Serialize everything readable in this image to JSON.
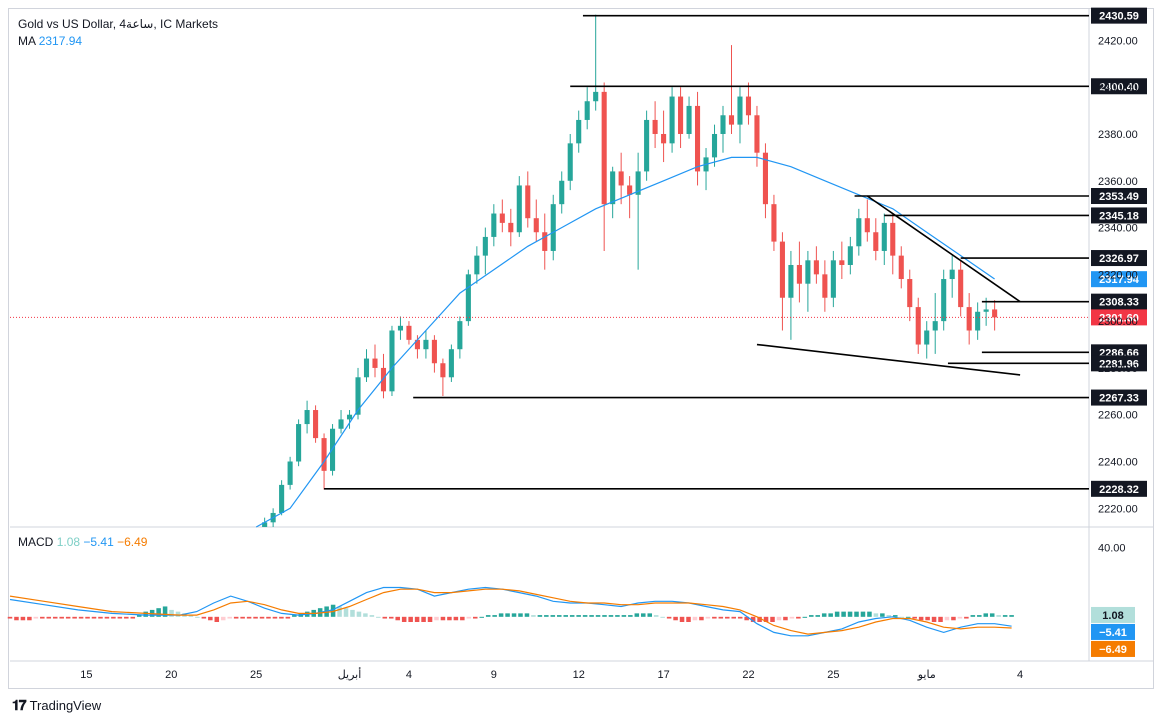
{
  "header": {
    "symbol": "Gold vs US Dollar, 4ساعة, IC Markets",
    "ma_label": "MA",
    "ma_value": "2317.94"
  },
  "macd_legend": {
    "label": "MACD",
    "hist": "1.08",
    "macd": "−5.41",
    "signal": "−6.49"
  },
  "footer": {
    "brand": "TradingView"
  },
  "colors": {
    "up": "#26a69a",
    "down": "#ef5350",
    "ma": "#2196f3",
    "macd_line": "#2196f3",
    "signal_line": "#f57c00",
    "hist_pos_strong": "#26a69a",
    "hist_pos_weak": "#b2dfdb",
    "hist_neg_strong": "#ef5350",
    "hist_neg_weak": "#ffcdd2",
    "last_price": "#f23645",
    "ma_tag": "#2196f3",
    "macd_hist_tag": "#b2dfdb"
  },
  "chart_data": {
    "type": "candlestick",
    "title": "Gold vs US Dollar, 4ساعة, IC Markets",
    "ylim": [
      2212,
      2433
    ],
    "y_ticks": [
      "2420.00",
      "2400.00",
      "2380.00",
      "2360.00",
      "2340.00",
      "2320.00",
      "2300.00",
      "2280.00",
      "2260.00",
      "2240.00",
      "2220.00"
    ],
    "x_ticks": [
      {
        "label": "15",
        "index": -21
      },
      {
        "label": "20",
        "index": -11
      },
      {
        "label": "25",
        "index": -1
      },
      {
        "label": "أبريل",
        "index": 10
      },
      {
        "label": "4",
        "index": 17
      },
      {
        "label": "9",
        "index": 27
      },
      {
        "label": "12",
        "index": 37
      },
      {
        "label": "17",
        "index": 47
      },
      {
        "label": "22",
        "index": 57
      },
      {
        "label": "25",
        "index": 67
      },
      {
        "label": "مايو",
        "index": 78
      },
      {
        "label": "4",
        "index": 89
      }
    ],
    "x_range": [
      -30,
      97
    ],
    "candles": [
      [
        2211,
        2216,
        2208,
        2214
      ],
      [
        2214,
        2220,
        2212,
        2218
      ],
      [
        2218,
        2232,
        2217,
        2230
      ],
      [
        2230,
        2242,
        2228,
        2240
      ],
      [
        2240,
        2258,
        2238,
        2256
      ],
      [
        2256,
        2266,
        2252,
        2262
      ],
      [
        2262,
        2264,
        2248,
        2250
      ],
      [
        2250,
        2252,
        2228,
        2236
      ],
      [
        2236,
        2256,
        2234,
        2254
      ],
      [
        2254,
        2262,
        2252,
        2258
      ],
      [
        2258,
        2262,
        2254,
        2260
      ],
      [
        2260,
        2280,
        2258,
        2276
      ],
      [
        2276,
        2288,
        2274,
        2284
      ],
      [
        2284,
        2290,
        2276,
        2280
      ],
      [
        2280,
        2286,
        2267,
        2270
      ],
      [
        2270,
        2298,
        2268,
        2296
      ],
      [
        2296,
        2302,
        2292,
        2298
      ],
      [
        2298,
        2300,
        2290,
        2292
      ],
      [
        2292,
        2294,
        2284,
        2288
      ],
      [
        2288,
        2296,
        2284,
        2292
      ],
      [
        2292,
        2294,
        2278,
        2282
      ],
      [
        2282,
        2284,
        2268,
        2276
      ],
      [
        2276,
        2290,
        2274,
        2288
      ],
      [
        2288,
        2302,
        2284,
        2300
      ],
      [
        2300,
        2322,
        2298,
        2320
      ],
      [
        2320,
        2332,
        2316,
        2328
      ],
      [
        2328,
        2340,
        2320,
        2336
      ],
      [
        2336,
        2350,
        2332,
        2346
      ],
      [
        2346,
        2352,
        2338,
        2342
      ],
      [
        2342,
        2348,
        2332,
        2338
      ],
      [
        2338,
        2362,
        2336,
        2358
      ],
      [
        2358,
        2364,
        2340,
        2344
      ],
      [
        2344,
        2352,
        2334,
        2338
      ],
      [
        2338,
        2346,
        2322,
        2330
      ],
      [
        2330,
        2354,
        2326,
        2350
      ],
      [
        2350,
        2364,
        2346,
        2360
      ],
      [
        2360,
        2380,
        2356,
        2376
      ],
      [
        2376,
        2390,
        2372,
        2386
      ],
      [
        2386,
        2400,
        2382,
        2394
      ],
      [
        2394,
        2431,
        2390,
        2398
      ],
      [
        2398,
        2402,
        2330,
        2350
      ],
      [
        2350,
        2366,
        2344,
        2364
      ],
      [
        2364,
        2372,
        2350,
        2358
      ],
      [
        2358,
        2362,
        2344,
        2354
      ],
      [
        2354,
        2372,
        2322,
        2364
      ],
      [
        2364,
        2390,
        2360,
        2386
      ],
      [
        2386,
        2394,
        2374,
        2380
      ],
      [
        2380,
        2390,
        2368,
        2376
      ],
      [
        2376,
        2400,
        2372,
        2396
      ],
      [
        2396,
        2400,
        2374,
        2380
      ],
      [
        2380,
        2396,
        2378,
        2392
      ],
      [
        2392,
        2398,
        2358,
        2364
      ],
      [
        2364,
        2374,
        2356,
        2370
      ],
      [
        2370,
        2384,
        2366,
        2380
      ],
      [
        2380,
        2392,
        2372,
        2388
      ],
      [
        2388,
        2418,
        2380,
        2384
      ],
      [
        2384,
        2400,
        2376,
        2396
      ],
      [
        2396,
        2402,
        2384,
        2388
      ],
      [
        2388,
        2392,
        2366,
        2372
      ],
      [
        2372,
        2376,
        2344,
        2350
      ],
      [
        2350,
        2354,
        2330,
        2334
      ],
      [
        2334,
        2338,
        2296,
        2310
      ],
      [
        2310,
        2330,
        2292,
        2324
      ],
      [
        2324,
        2334,
        2308,
        2316
      ],
      [
        2316,
        2330,
        2304,
        2326
      ],
      [
        2326,
        2332,
        2316,
        2320
      ],
      [
        2320,
        2326,
        2304,
        2310
      ],
      [
        2310,
        2330,
        2306,
        2326
      ],
      [
        2326,
        2334,
        2318,
        2324
      ],
      [
        2324,
        2336,
        2320,
        2332
      ],
      [
        2332,
        2348,
        2328,
        2344
      ],
      [
        2344,
        2352,
        2334,
        2338
      ],
      [
        2338,
        2344,
        2326,
        2330
      ],
      [
        2330,
        2346,
        2324,
        2342
      ],
      [
        2342,
        2346,
        2320,
        2328
      ],
      [
        2328,
        2332,
        2314,
        2318
      ],
      [
        2318,
        2322,
        2300,
        2306
      ],
      [
        2306,
        2310,
        2286,
        2290
      ],
      [
        2290,
        2300,
        2284,
        2296
      ],
      [
        2296,
        2312,
        2286,
        2300
      ],
      [
        2300,
        2322,
        2296,
        2318
      ],
      [
        2318,
        2328,
        2310,
        2322
      ],
      [
        2322,
        2326,
        2302,
        2306
      ],
      [
        2306,
        2312,
        2290,
        2296
      ],
      [
        2296,
        2308,
        2292,
        2304
      ],
      [
        2304,
        2310,
        2298,
        2305
      ],
      [
        2305,
        2309,
        2296,
        2301.6
      ]
    ],
    "ma_period_label": "MA",
    "ma": [
      [
        -1,
        2200
      ],
      [
        3,
        2220
      ],
      [
        7,
        2240
      ],
      [
        11,
        2262
      ],
      [
        15,
        2280
      ],
      [
        19,
        2296
      ],
      [
        23,
        2312
      ],
      [
        27,
        2322
      ],
      [
        31,
        2332
      ],
      [
        35,
        2340
      ],
      [
        39,
        2348
      ],
      [
        43,
        2354
      ],
      [
        47,
        2360
      ],
      [
        51,
        2366
      ],
      [
        55,
        2370
      ],
      [
        58,
        2370
      ],
      [
        62,
        2366
      ],
      [
        66,
        2360
      ],
      [
        70,
        2354
      ],
      [
        74,
        2348
      ],
      [
        78,
        2338
      ],
      [
        82,
        2328
      ],
      [
        86,
        2318
      ]
    ],
    "levels": [
      {
        "value": 2430.59,
        "label": "2430.59",
        "x_from": 37.5
      },
      {
        "value": 2400.4,
        "label": "2400.40",
        "x_from": 36
      },
      {
        "value": 2353.49,
        "label": "2353.49",
        "x_from": 69.5
      },
      {
        "value": 2345.18,
        "label": "2345.18",
        "x_from": 73
      },
      {
        "value": 2326.97,
        "label": "2326.97",
        "x_from": 82
      },
      {
        "value": 2308.33,
        "label": "2308.33",
        "x_from": 84.5
      },
      {
        "value": 2286.66,
        "label": "2286.66",
        "x_from": 84.5
      },
      {
        "value": 2281.96,
        "label": "2281.96",
        "x_from": 80.5
      },
      {
        "value": 2267.33,
        "label": "2267.33",
        "x_from": 17.5
      },
      {
        "value": 2228.32,
        "label": "2228.32",
        "x_from": 7
      }
    ],
    "trendlines": [
      {
        "from": [
          71,
          2353.49
        ],
        "to": [
          89,
          2308.33
        ]
      },
      {
        "from": [
          58,
          2290
        ],
        "to": [
          89,
          2277
        ]
      }
    ],
    "last_price": {
      "value": 2301.6,
      "label": "2301.60"
    },
    "ma_tag": {
      "value": 2317.94,
      "label": "2317.94"
    },
    "macd": {
      "ylim": [
        -25,
        52
      ],
      "y_ticks": [
        "40.00"
      ],
      "hist": [
        -1,
        -2,
        -2,
        -2,
        -1,
        -1,
        -1,
        -1,
        -1,
        -1,
        -1,
        -1,
        -1,
        -1,
        -1,
        -1,
        -1,
        -1,
        -1,
        -1,
        1,
        3,
        4,
        5,
        6,
        4,
        3,
        2,
        1,
        0,
        -1,
        -2,
        -3,
        -2,
        -1,
        -1,
        -1,
        -1,
        -1,
        -1,
        -1,
        -1,
        -1,
        -1,
        1,
        2,
        3,
        4,
        5,
        6,
        7,
        6,
        5,
        4,
        3,
        2,
        1,
        0,
        -1,
        -1,
        -2,
        -3,
        -3,
        -3,
        -3,
        -3,
        -2,
        -2,
        -2,
        -2,
        -2,
        -1,
        -1,
        0,
        1,
        1,
        2,
        2,
        2,
        2,
        2,
        1,
        1,
        1,
        1,
        1,
        1,
        1,
        1,
        1,
        1,
        1,
        1,
        1,
        1,
        1,
        1,
        2,
        2,
        2,
        1,
        0,
        -1,
        -2,
        -3,
        -3,
        -2,
        -2,
        -1,
        -1,
        -1,
        -1,
        -1,
        -1,
        -2,
        -3,
        -3,
        -3,
        -3,
        -2,
        -2,
        -1,
        -1,
        0,
        1,
        1,
        2,
        2,
        3,
        3,
        3,
        3,
        3,
        3,
        2,
        2,
        1,
        1,
        0,
        0,
        -1,
        -2,
        -2,
        -3,
        -3,
        -2,
        -2,
        -1,
        -1,
        1,
        1,
        2,
        2,
        1,
        1,
        1
      ],
      "macd_line": [
        [
          -30,
          10
        ],
        [
          -26,
          7
        ],
        [
          -22,
          4
        ],
        [
          -18,
          2
        ],
        [
          -14,
          1
        ],
        [
          -10,
          1
        ],
        [
          -8,
          3
        ],
        [
          -6,
          8
        ],
        [
          -4,
          12
        ],
        [
          -2,
          9
        ],
        [
          0,
          5
        ],
        [
          2,
          2
        ],
        [
          4,
          1
        ],
        [
          6,
          2
        ],
        [
          8,
          4
        ],
        [
          10,
          9
        ],
        [
          12,
          14
        ],
        [
          14,
          17
        ],
        [
          16,
          17
        ],
        [
          18,
          16
        ],
        [
          20,
          12
        ],
        [
          22,
          14
        ],
        [
          24,
          16
        ],
        [
          26,
          17
        ],
        [
          28,
          16
        ],
        [
          30,
          14
        ],
        [
          32,
          12
        ],
        [
          34,
          9
        ],
        [
          36,
          8
        ],
        [
          38,
          8
        ],
        [
          40,
          7
        ],
        [
          42,
          6
        ],
        [
          44,
          8
        ],
        [
          46,
          9
        ],
        [
          48,
          9
        ],
        [
          50,
          8
        ],
        [
          52,
          6
        ],
        [
          54,
          4
        ],
        [
          56,
          3
        ],
        [
          58,
          -4
        ],
        [
          60,
          -9
        ],
        [
          62,
          -11
        ],
        [
          64,
          -11
        ],
        [
          66,
          -9
        ],
        [
          68,
          -7
        ],
        [
          70,
          -3
        ],
        [
          72,
          -1
        ],
        [
          74,
          0
        ],
        [
          76,
          -2
        ],
        [
          78,
          -6
        ],
        [
          80,
          -9
        ],
        [
          82,
          -6
        ],
        [
          84,
          -4
        ],
        [
          86,
          -4
        ],
        [
          88,
          -5.41
        ]
      ],
      "signal_line": [
        [
          -30,
          12
        ],
        [
          -26,
          9
        ],
        [
          -22,
          6
        ],
        [
          -18,
          3
        ],
        [
          -14,
          2
        ],
        [
          -10,
          1
        ],
        [
          -8,
          1
        ],
        [
          -6,
          4
        ],
        [
          -4,
          8
        ],
        [
          -2,
          9
        ],
        [
          0,
          7
        ],
        [
          2,
          4
        ],
        [
          4,
          2
        ],
        [
          6,
          2
        ],
        [
          8,
          3
        ],
        [
          10,
          6
        ],
        [
          12,
          10
        ],
        [
          14,
          14
        ],
        [
          16,
          16
        ],
        [
          18,
          16
        ],
        [
          20,
          14
        ],
        [
          22,
          14
        ],
        [
          24,
          15
        ],
        [
          26,
          16
        ],
        [
          28,
          16
        ],
        [
          30,
          15
        ],
        [
          32,
          13
        ],
        [
          34,
          11
        ],
        [
          36,
          9
        ],
        [
          38,
          8
        ],
        [
          40,
          8
        ],
        [
          42,
          7
        ],
        [
          44,
          7
        ],
        [
          46,
          8
        ],
        [
          48,
          8
        ],
        [
          50,
          8
        ],
        [
          52,
          7
        ],
        [
          54,
          6
        ],
        [
          56,
          4
        ],
        [
          58,
          0
        ],
        [
          60,
          -5
        ],
        [
          62,
          -8
        ],
        [
          64,
          -10
        ],
        [
          66,
          -9
        ],
        [
          68,
          -8
        ],
        [
          70,
          -6
        ],
        [
          72,
          -3
        ],
        [
          74,
          -1
        ],
        [
          76,
          -1
        ],
        [
          78,
          -3
        ],
        [
          80,
          -6
        ],
        [
          82,
          -7
        ],
        [
          84,
          -6
        ],
        [
          86,
          -6
        ],
        [
          88,
          -6.49
        ]
      ],
      "tags": [
        {
          "value": 1.08,
          "label": "1.08",
          "kind": "hist"
        },
        {
          "value": -5.41,
          "label": "−5.41",
          "kind": "macd"
        },
        {
          "value": -6.49,
          "label": "−6.49",
          "kind": "signal"
        }
      ]
    }
  }
}
